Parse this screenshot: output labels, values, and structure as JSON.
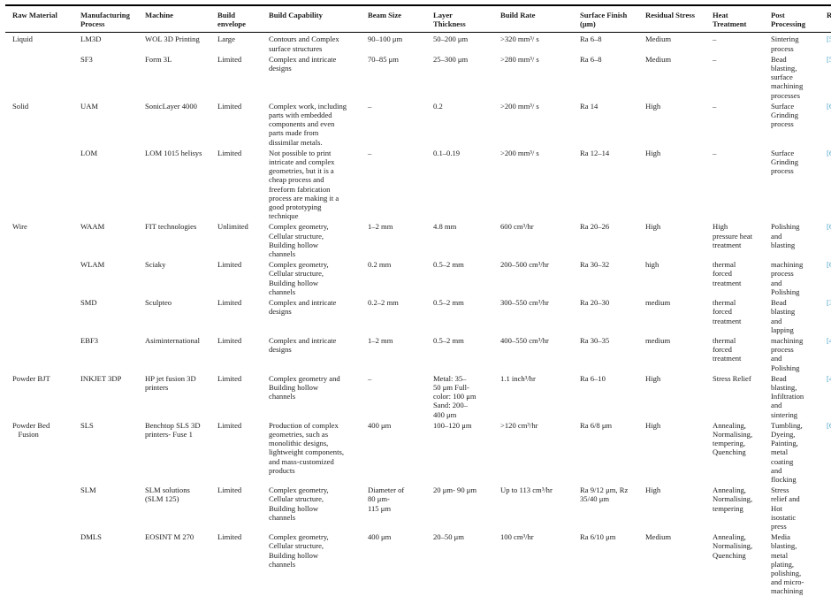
{
  "colors": {
    "link": "#46a3cb",
    "text": "#1c1c1c",
    "rule": "#000000"
  },
  "table": {
    "columns": [
      {
        "key": "raw",
        "label": "Raw Material"
      },
      {
        "key": "proc",
        "label": "Manufacturing\nProcess"
      },
      {
        "key": "machine",
        "label": "Machine"
      },
      {
        "key": "env",
        "label": "Build\nenvelope"
      },
      {
        "key": "cap",
        "label": "Build Capability"
      },
      {
        "key": "beam",
        "label": "Beam Size"
      },
      {
        "key": "layer",
        "label": "Layer\nThickness"
      },
      {
        "key": "rate",
        "label": "Build Rate"
      },
      {
        "key": "finish",
        "label": "Surface Finish\n(μm)"
      },
      {
        "key": "stress",
        "label": "Residual Stress"
      },
      {
        "key": "heat",
        "label": "Heat\nTreatment"
      },
      {
        "key": "post",
        "label": "Post\nProcessing"
      },
      {
        "key": "ref",
        "label": "Ref"
      }
    ],
    "rows": [
      {
        "raw": "Liquid",
        "proc": "LM3D",
        "machine": "WOL 3D Printing",
        "env": "Large",
        "cap": "Contours and Complex\nsurface structures",
        "beam": "90–100 μm",
        "layer": "50–200 μm",
        "rate": ">320 mm³/ s",
        "finish": "Ra 6–8",
        "stress": "Medium",
        "heat": "–",
        "post": "Sintering\nprocess",
        "ref": "[56,57]"
      },
      {
        "raw": "",
        "proc": "SF3",
        "machine": "Form 3L",
        "env": "Limited",
        "cap": "Complex and intricate\ndesigns",
        "beam": "70–85 μm",
        "layer": "25–300 μm",
        "rate": ">280 mm³/ s",
        "finish": "Ra 6–8",
        "stress": "Medium",
        "heat": "–",
        "post": "Bead\nblasting,\nsurface\nmachining\nprocesses",
        "ref": "[58,59]"
      },
      {
        "raw": "Solid",
        "proc": "UAM",
        "machine": "SonicLayer 4000",
        "env": "Limited",
        "cap": "Complex work, including\nparts with embedded\ncomponents and even\nparts made from\ndissimilar metals.",
        "beam": "–",
        "layer": "0.2",
        "rate": ">200 mm³/ s",
        "finish": "Ra 14",
        "stress": "High",
        "heat": "–",
        "post": "Surface\nGrinding\nprocess",
        "ref": "[60]"
      },
      {
        "raw": "",
        "proc": "LOM",
        "machine": "LOM 1015 helisys",
        "env": "Limited",
        "cap": "Not possible to print\nintricate and complex\ngeometries, but it is a\ncheap process and\nfreeform fabrication\nprocess are making it a\ngood prototyping\ntechnique",
        "beam": "–",
        "layer": "0.1–0.19",
        "rate": ">200 mm³/ s",
        "finish": "Ra 12–14",
        "stress": "High",
        "heat": "–",
        "post": "Surface\nGrinding\nprocess",
        "ref": "[61,62]"
      },
      {
        "raw": "Wire",
        "proc": "WAAM",
        "machine": "FIT technologies",
        "env": "Unlimited",
        "cap": "Complex geometry,\nCellular structure,\nBuilding hollow\nchannels",
        "beam": "1–2 mm",
        "layer": "4.8 mm",
        "rate": "600 cm³/hr",
        "finish": "Ra 20–26",
        "stress": "High",
        "heat": "High\npressure heat\ntreatment",
        "post": "Polishing\nand\nblasting",
        "ref": "[63,64]"
      },
      {
        "raw": "",
        "proc": "WLAM",
        "machine": "Sciaky",
        "env": "Limited",
        "cap": "Complex geometry,\nCellular structure,\nBuilding hollow\nchannels",
        "beam": "0.2 mm",
        "layer": "0.5–2 mm",
        "rate": "200–500 cm³/hr",
        "finish": "Ra 30–32",
        "stress": "high",
        "heat": "thermal\nforced\ntreatment",
        "post": "machining\nprocess\nand\nPolishing",
        "ref": "[65,66]"
      },
      {
        "raw": "",
        "proc": "SMD",
        "machine": "Sculpteo",
        "env": "Limited",
        "cap": "Complex and intricate\ndesigns",
        "beam": "0.2–2 mm",
        "layer": "0.5–2 mm",
        "rate": "300–550 cm³/hr",
        "finish": "Ra 20–30",
        "stress": "medium",
        "heat": "thermal\nforced\ntreatment",
        "post": "Bead\nblasting\nand\nlapping",
        "ref": "[37,67]"
      },
      {
        "raw": "",
        "proc": "EBF3",
        "machine": "Asiminternational",
        "env": "Limited",
        "cap": "Complex and intricate\ndesigns",
        "beam": "1–2 mm",
        "layer": "0.5–2 mm",
        "rate": "400–550 cm³/hr",
        "finish": "Ra 30–35",
        "stress": "medium",
        "heat": "thermal\nforced\ntreatment",
        "post": "machining\nprocess\nand\nPolishing",
        "ref": "[40,68]"
      },
      {
        "raw": "Powder BJT",
        "proc": "INKJET 3DP",
        "machine": "HP jet fusion 3D\nprinters",
        "env": "Limited",
        "cap": "Complex geometry and\nBuilding hollow\nchannels",
        "beam": "–",
        "layer": "Metal: 35–\n50 μm Full-\ncolor: 100 μm\nSand: 200–\n400 μm",
        "rate": "1.1 inch³/hr",
        "finish": "Ra 6–10",
        "stress": "High",
        "heat": "Stress Relief",
        "post": "Bead\nblasting,\nInfiltration\nand\nsintering",
        "ref": "[41]"
      },
      {
        "raw": "Powder Bed\n   Fusion",
        "proc": "SLS",
        "machine": "Benchtop SLS 3D\nprinters- Fuse 1",
        "env": "Limited",
        "cap": "Production of complex\ngeometries, such as\nmonolithic designs,\nlightweight components,\nand mass-customized\nproducts",
        "beam": "400 μm",
        "layer": "100–120 μm",
        "rate": ">120 cm³/hr",
        "finish": "Ra 6/8 μm",
        "stress": "High",
        "heat": "Annealing,\nNormalising,\ntempering,\nQuenching",
        "post": "Tumbling,\nDyeing,\nPainting,\nmetal\ncoating\nand\nflocking",
        "ref": "[69–75]"
      },
      {
        "raw": "",
        "proc": "SLM",
        "machine": "SLM solutions\n(SLM 125)",
        "env": "Limited",
        "cap": "Complex geometry,\nCellular structure,\nBuilding hollow\nchannels",
        "beam": "Diameter of\n80 μm-\n115 μm",
        "layer": "20 μm- 90 μm",
        "rate": "Up to 113 cm³/hr",
        "finish": "Ra 9/12 μm, Rz\n35/40 μm",
        "stress": "High",
        "heat": "Annealing,\nNormalising,\ntempering",
        "post": "Stress\nrelief and\nHot\nisostatic\npress",
        "ref": ""
      },
      {
        "raw": "",
        "proc": "DMLS",
        "machine": "EOSINT M 270",
        "env": "Limited",
        "cap": "Complex geometry,\nCellular structure,\nBuilding hollow\nchannels",
        "beam": "400 μm",
        "layer": "20–50 μm",
        "rate": "100 cm³/hr",
        "finish": "Ra 6/10 μm",
        "stress": "Medium",
        "heat": "Annealing,\nNormalising,\nQuenching",
        "post": "Media\nblasting,\nmetal\nplating,\npolishing,\nand micro-\nmachining",
        "ref": ""
      }
    ]
  }
}
